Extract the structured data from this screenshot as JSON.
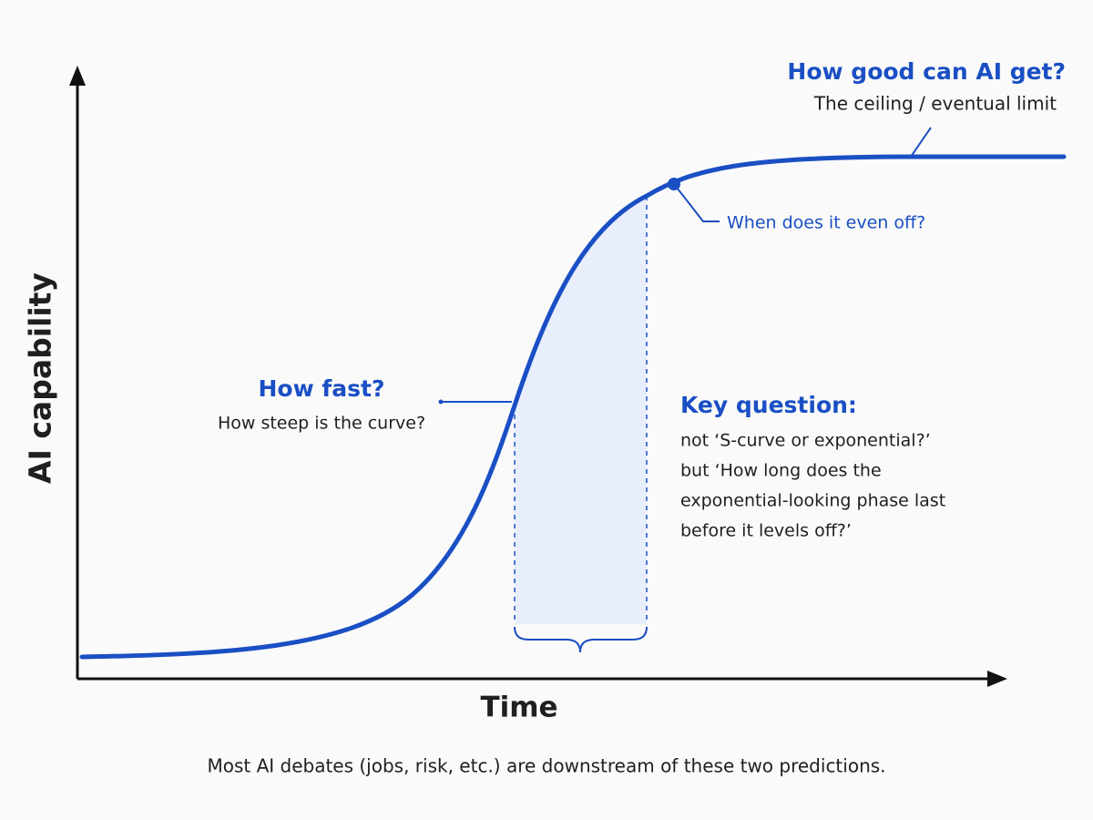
{
  "axes": {
    "y_label": "AI capability",
    "x_label": "Time"
  },
  "annotations": {
    "ceiling": {
      "title": "How good can AI get?",
      "subtitle": "The ceiling / eventual limit"
    },
    "level_off": {
      "label": "When does it even off?"
    },
    "speed": {
      "title": "How fast?",
      "subtitle": "How steep is the curve?"
    },
    "key_question": {
      "title": "Key question:",
      "lines": [
        "not ‘S-curve or exponential?’",
        "but ‘How long does the",
        "exponential-looking phase last",
        "before it levels off?’"
      ]
    }
  },
  "footer": "Most AI debates (jobs, risk, etc.) are downstream of these two predictions."
}
